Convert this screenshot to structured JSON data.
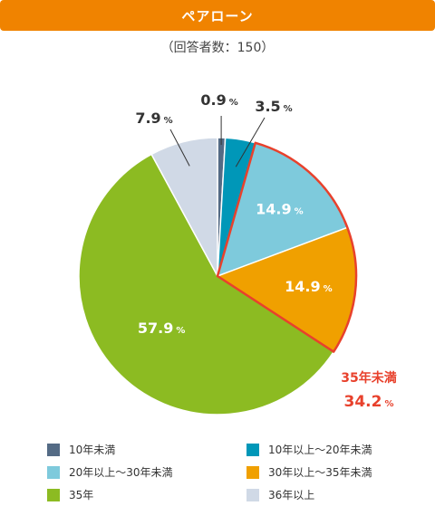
{
  "header": {
    "title": "ペアローン"
  },
  "subtitle": "（回答者数：150）",
  "highlight": {
    "label": "35年未満",
    "value": "34.2",
    "unit": "%",
    "color": "#e8412c"
  },
  "chart_data": {
    "type": "pie",
    "title": "ペアローン",
    "subtitle": "（回答者数：150）",
    "unit": "%",
    "slices": [
      {
        "name": "10年未満",
        "value": 0.9,
        "color": "#546b85",
        "label": "0.9"
      },
      {
        "name": "10年以上～20年未満",
        "value": 3.5,
        "color": "#0097b8",
        "label": "3.5"
      },
      {
        "name": "20年以上～30年未満",
        "value": 14.9,
        "color": "#7ecadc",
        "label": "14.9"
      },
      {
        "name": "30年以上～35年未満",
        "value": 14.9,
        "color": "#f0a000",
        "label": "14.9"
      },
      {
        "name": "35年",
        "value": 57.9,
        "color": "#8cbb22",
        "label": "57.9"
      },
      {
        "name": "36年以上",
        "value": 7.9,
        "color": "#d0d9e6",
        "label": "7.9"
      }
    ],
    "legend": "bottom"
  }
}
